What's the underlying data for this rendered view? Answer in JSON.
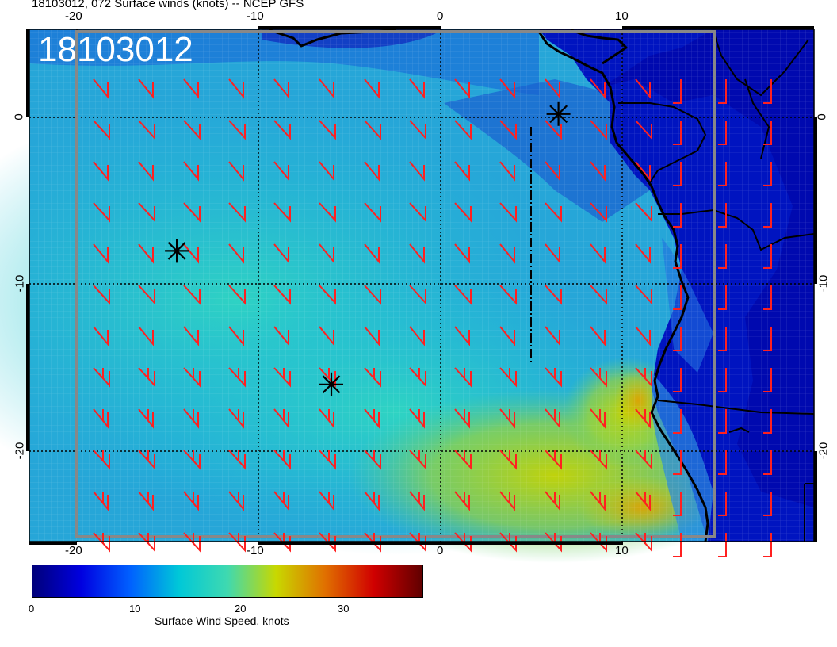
{
  "title": "18103012, 072 Surface winds (knots) -- NCEP GFS",
  "stamp": "18103012",
  "x_ticks_bottom": [
    "-20",
    "-10",
    "0",
    "10"
  ],
  "x_ticks_top": [
    "-20",
    "-10",
    "0",
    "10"
  ],
  "y_ticks": [
    "0",
    "-10",
    "-20"
  ],
  "colorbar": {
    "title": "Surface Wind Speed, knots",
    "ticks": [
      "0",
      "10",
      "20",
      "30"
    ],
    "colors": [
      "#00007a",
      "#0000e0",
      "#0060ff",
      "#00c8d8",
      "#3fd9b0",
      "#c8d800",
      "#e07000",
      "#d00000",
      "#600000"
    ]
  },
  "colors": {
    "barb": "#ff2020",
    "land": "#0018c8",
    "coast": "#000000",
    "grid": "#000000"
  },
  "markers": [
    {
      "lon": -14.5,
      "lat": -8.0,
      "icon": "asterisk-marker-icon"
    },
    {
      "lon": -6.0,
      "lat": -16.0,
      "icon": "asterisk-marker-icon"
    },
    {
      "lon": 6.5,
      "lat": 0.2,
      "icon": "asterisk-marker-icon"
    }
  ]
}
